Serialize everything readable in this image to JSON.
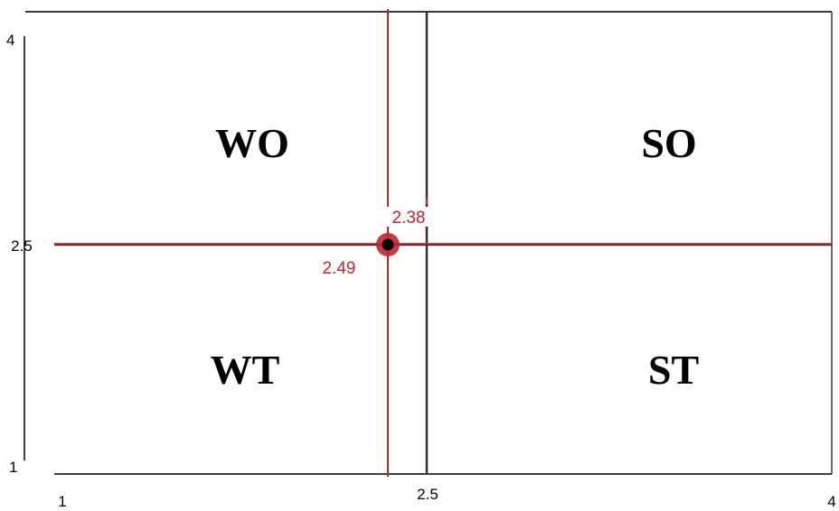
{
  "quadrants": {
    "top_left": "WO",
    "top_right": "SO",
    "bottom_left": "WT",
    "bottom_right": "ST"
  },
  "x_axis": {
    "min_label": "1",
    "mid_label": "2.5",
    "max_label": "4"
  },
  "y_axis": {
    "min_label": "1",
    "mid_label": "2.5",
    "max_label": "4"
  },
  "position": {
    "x_label": "2.38",
    "y_label": "2.49"
  },
  "colors": {
    "axis": "#000000",
    "divider": "#333333",
    "marker": "#c0272d",
    "marker_center": "#000000",
    "background": "#ffffff"
  }
}
